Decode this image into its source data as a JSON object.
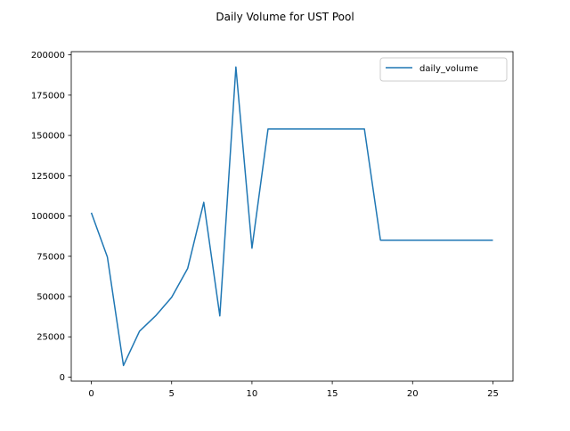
{
  "chart_data": {
    "type": "line",
    "title": "Daily Volume for UST Pool",
    "xlabel": "",
    "ylabel": "",
    "xlim": [
      -1.25,
      26.25
    ],
    "ylim": [
      -2500,
      202000
    ],
    "x_ticks": [
      0,
      5,
      10,
      15,
      20,
      25
    ],
    "y_ticks": [
      0,
      25000,
      50000,
      75000,
      100000,
      125000,
      150000,
      175000,
      200000
    ],
    "grid": false,
    "legend_position": "top-right",
    "series": [
      {
        "name": "daily_volume",
        "color": "#1f77b4",
        "x": [
          0,
          1,
          2,
          3,
          4,
          5,
          6,
          7,
          8,
          9,
          10,
          11,
          12,
          13,
          14,
          15,
          16,
          17,
          18,
          19,
          20,
          21,
          22,
          23,
          24,
          25
        ],
        "values": [
          102000,
          74500,
          7200,
          28500,
          38000,
          49500,
          67500,
          108500,
          38000,
          192500,
          80000,
          154000,
          154000,
          154000,
          154000,
          154000,
          154000,
          154000,
          85000,
          85000,
          85000,
          85000,
          85000,
          85000,
          85000,
          85000
        ]
      }
    ]
  }
}
